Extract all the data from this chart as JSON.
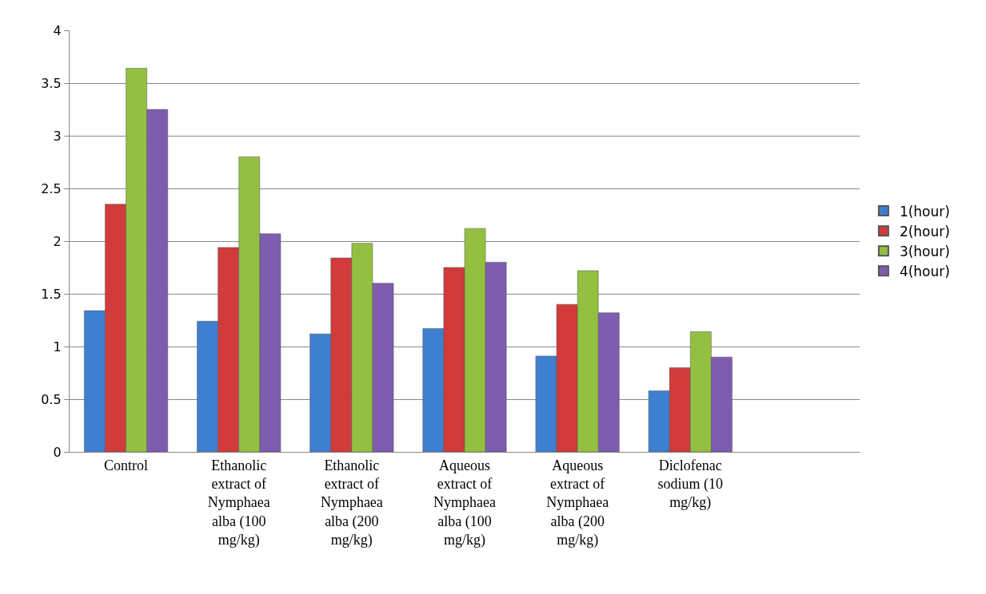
{
  "chart_data": {
    "type": "bar",
    "categories": [
      "Control",
      "Ethanolic extract of Nymphaea alba (100 mg/kg)",
      "Ethanolic extract of Nymphaea alba (200 mg/kg)",
      "Aqueous extract of Nymphaea alba (100 mg/kg)",
      "Aqueous extract of Nymphaea alba (200 mg/kg)",
      "Diclofenac sodium (10 mg/kg)",
      null
    ],
    "series": [
      {
        "name": "1(hour)",
        "color": "#3f7fcf",
        "values": [
          1.34,
          1.24,
          1.12,
          1.17,
          0.91,
          0.58,
          null
        ]
      },
      {
        "name": "2(hour)",
        "color": "#d13b3b",
        "values": [
          2.35,
          1.94,
          1.84,
          1.75,
          1.4,
          0.8,
          null
        ]
      },
      {
        "name": "3(hour)",
        "color": "#93c040",
        "values": [
          3.64,
          2.8,
          1.98,
          2.12,
          1.72,
          1.14,
          null
        ]
      },
      {
        "name": "4(hour)",
        "color": "#7e5caf",
        "values": [
          3.25,
          2.07,
          1.6,
          1.8,
          1.32,
          0.9,
          null
        ]
      }
    ],
    "ylim": [
      0,
      4
    ],
    "yticks": [
      0,
      0.5,
      1,
      1.5,
      2,
      2.5,
      3,
      3.5,
      4
    ],
    "grid": "y",
    "legend": "right"
  }
}
